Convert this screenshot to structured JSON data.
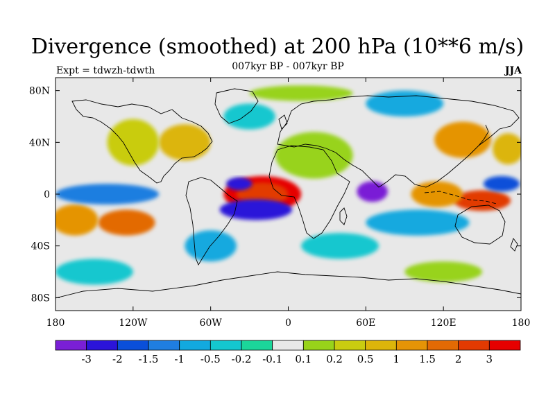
{
  "title": "Divergence (smoothed) at 200 hPa (10**6 m/s)",
  "subtitle": "007kyr BP - 007kyr BP",
  "left_label": "Expt = tdwzh-tdwth",
  "right_label": "JJA",
  "axes": {
    "lat_ticks": [
      "80N",
      "40N",
      "0",
      "40S",
      "80S"
    ],
    "lat_values": [
      80,
      40,
      0,
      -40,
      -80
    ],
    "lon_ticks": [
      "180",
      "120W",
      "60W",
      "0",
      "60E",
      "120E",
      "180"
    ],
    "lon_values": [
      -180,
      -120,
      -60,
      0,
      60,
      120,
      180
    ]
  },
  "colorbar": {
    "colors": [
      "#7a1fd6",
      "#2b14d9",
      "#0a4fd9",
      "#1f7ee0",
      "#12a9df",
      "#14c7cf",
      "#1bd69a",
      "#e8e8e8",
      "#98d31a",
      "#c9cc10",
      "#dcb50a",
      "#e59406",
      "#e36a04",
      "#e23a02",
      "#e60000"
    ],
    "labels": [
      "-3",
      "-2",
      "-1.5",
      "-1",
      "-0.5",
      "-0.2",
      "-0.1",
      "0.1",
      "0.2",
      "0.5",
      "1",
      "1.5",
      "2",
      "3"
    ]
  },
  "field_blobs": [
    {
      "lon": -20,
      "lat": 0,
      "rlon": 30,
      "rlat": 14,
      "c": 14
    },
    {
      "lon": -20,
      "lat": 0,
      "rlon": 20,
      "rlat": 9,
      "c": 13
    },
    {
      "lon": -25,
      "lat": -12,
      "rlon": 28,
      "rlat": 8,
      "c": 1
    },
    {
      "lon": -38,
      "lat": 8,
      "rlon": 10,
      "rlat": 5,
      "c": 1
    },
    {
      "lon": 65,
      "lat": 2,
      "rlon": 12,
      "rlat": 8,
      "c": 0
    },
    {
      "lon": 150,
      "lat": -5,
      "rlon": 22,
      "rlat": 8,
      "c": 13
    },
    {
      "lon": 115,
      "lat": 0,
      "rlon": 20,
      "rlat": 10,
      "c": 11
    },
    {
      "lon": -125,
      "lat": -22,
      "rlon": 22,
      "rlat": 10,
      "c": 12
    },
    {
      "lon": -165,
      "lat": -20,
      "rlon": 18,
      "rlat": 12,
      "c": 11
    },
    {
      "lon": 135,
      "lat": 42,
      "rlon": 22,
      "rlat": 14,
      "c": 11
    },
    {
      "lon": 170,
      "lat": 35,
      "rlon": 12,
      "rlat": 12,
      "c": 10
    },
    {
      "lon": 165,
      "lat": 8,
      "rlon": 14,
      "rlat": 6,
      "c": 2
    },
    {
      "lon": -140,
      "lat": 0,
      "rlon": 40,
      "rlat": 8,
      "c": 3
    },
    {
      "lon": 100,
      "lat": -22,
      "rlon": 40,
      "rlat": 10,
      "c": 4
    },
    {
      "lon": -80,
      "lat": 40,
      "rlon": 20,
      "rlat": 14,
      "c": 10
    },
    {
      "lon": -120,
      "lat": 40,
      "rlon": 20,
      "rlat": 18,
      "c": 9
    },
    {
      "lon": 20,
      "lat": 30,
      "rlon": 30,
      "rlat": 18,
      "c": 8
    },
    {
      "lon": -60,
      "lat": -40,
      "rlon": 20,
      "rlat": 12,
      "c": 4
    },
    {
      "lon": 40,
      "lat": -40,
      "rlon": 30,
      "rlat": 10,
      "c": 5
    },
    {
      "lon": 120,
      "lat": -60,
      "rlon": 30,
      "rlat": 8,
      "c": 8
    },
    {
      "lon": -150,
      "lat": -60,
      "rlon": 30,
      "rlat": 10,
      "c": 5
    },
    {
      "lon": 10,
      "lat": 78,
      "rlon": 40,
      "rlat": 6,
      "c": 8
    },
    {
      "lon": 90,
      "lat": 70,
      "rlon": 30,
      "rlat": 10,
      "c": 4
    },
    {
      "lon": -30,
      "lat": 60,
      "rlon": 20,
      "rlat": 10,
      "c": 5
    }
  ]
}
